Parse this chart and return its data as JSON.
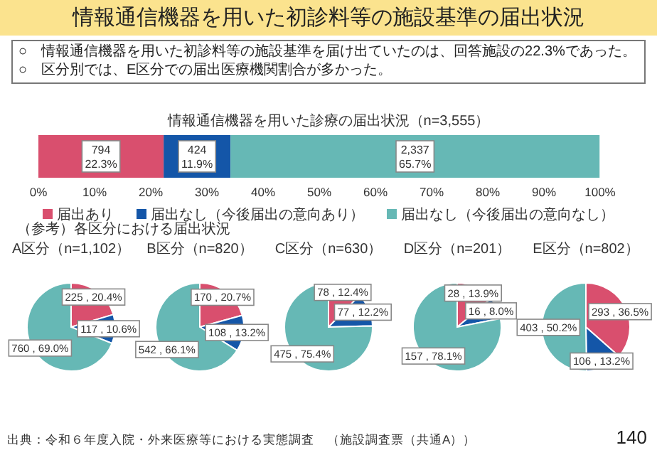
{
  "chart_data": [
    {
      "type": "bar",
      "orientation": "horizontal",
      "stacked": true,
      "title": "情報通信機器を用いた診療の届出状況（n=3,555）",
      "annotations": [
        "情報通信機器を用いた初診料等の施設基準の届出状況",
        "○　情報通信機器を用いた初診料等の施設基準を届け出ていたのは、回答施設の22.3%であった。",
        "○　区分別では、E区分での届出医療機関割合が多かった。",
        "（参考）各区分における届出状況",
        "出典：令和６年度入院・外来医療等における実態調査　（施設調査票（共通A））",
        "140"
      ],
      "categories": [
        null
      ],
      "series": [
        {
          "name": "届出あり",
          "color": "#d94f6e",
          "values": [
            22.3
          ],
          "value_labels": [
            "794\n22.3%"
          ]
        },
        {
          "name": "届出なし（今後届出の意向あり）",
          "color": "#1456a8",
          "values": [
            11.9
          ],
          "value_labels": [
            "424\n11.9%"
          ]
        },
        {
          "name": "届出なし（今後届出の意向なし）",
          "color": "#66b8b5",
          "values": [
            65.7
          ],
          "value_labels": [
            "2,337\n65.7%"
          ]
        }
      ],
      "xlim": [
        0,
        100
      ],
      "xticks": [
        {
          "value": 0,
          "label": "0%"
        },
        {
          "value": 10,
          "label": "10%"
        },
        {
          "value": 20,
          "label": "20%"
        },
        {
          "value": 30,
          "label": "30%"
        },
        {
          "value": 40,
          "label": "40%"
        },
        {
          "value": 50,
          "label": "50%"
        },
        {
          "value": 60,
          "label": "60%"
        },
        {
          "value": 70,
          "label": "70%"
        },
        {
          "value": 80,
          "label": "80%"
        },
        {
          "value": 90,
          "label": "90%"
        },
        {
          "value": 100,
          "label": "100%"
        }
      ],
      "legend": "bottom"
    },
    {
      "type": "pie",
      "title": "A区分（n=1,102）",
      "categories": [
        null,
        null,
        null
      ],
      "values": [
        225,
        117,
        760
      ],
      "value_labels": [
        "225 , 20.4%",
        "117 , 10.6%",
        "760 , 69.0%"
      ],
      "colors": [
        "#d94f6e",
        "#1456a8",
        "#66b8b5"
      ]
    },
    {
      "type": "pie",
      "title": "B区分（n=820）",
      "categories": [
        null,
        null,
        null
      ],
      "values": [
        170,
        108,
        542
      ],
      "value_labels": [
        "170 , 20.7%",
        "108 , 13.2%",
        "542 , 66.1%"
      ],
      "colors": [
        "#d94f6e",
        "#1456a8",
        "#66b8b5"
      ]
    },
    {
      "type": "pie",
      "title": "C区分（n=630）",
      "categories": [
        null,
        null,
        null
      ],
      "values": [
        78,
        77,
        475
      ],
      "value_labels": [
        "78 , 12.4%",
        "77 , 12.2%",
        "475 , 75.4%"
      ],
      "colors": [
        "#d94f6e",
        "#1456a8",
        "#66b8b5"
      ]
    },
    {
      "type": "pie",
      "title": "D区分（n=201）",
      "categories": [
        null,
        null,
        null
      ],
      "values": [
        28,
        16,
        157
      ],
      "value_labels": [
        "28 , 13.9%",
        "16 , 8.0%",
        "157 , 78.1%"
      ],
      "colors": [
        "#d94f6e",
        "#1456a8",
        "#66b8b5"
      ]
    },
    {
      "type": "pie",
      "title": "E区分（n=802）",
      "categories": [
        null,
        null,
        null
      ],
      "values": [
        293,
        106,
        403
      ],
      "value_labels": [
        "293 , 36.5%",
        "106 , 13.2%",
        "403 , 50.2%"
      ],
      "colors": [
        "#d94f6e",
        "#1456a8",
        "#66b8b5"
      ]
    }
  ]
}
